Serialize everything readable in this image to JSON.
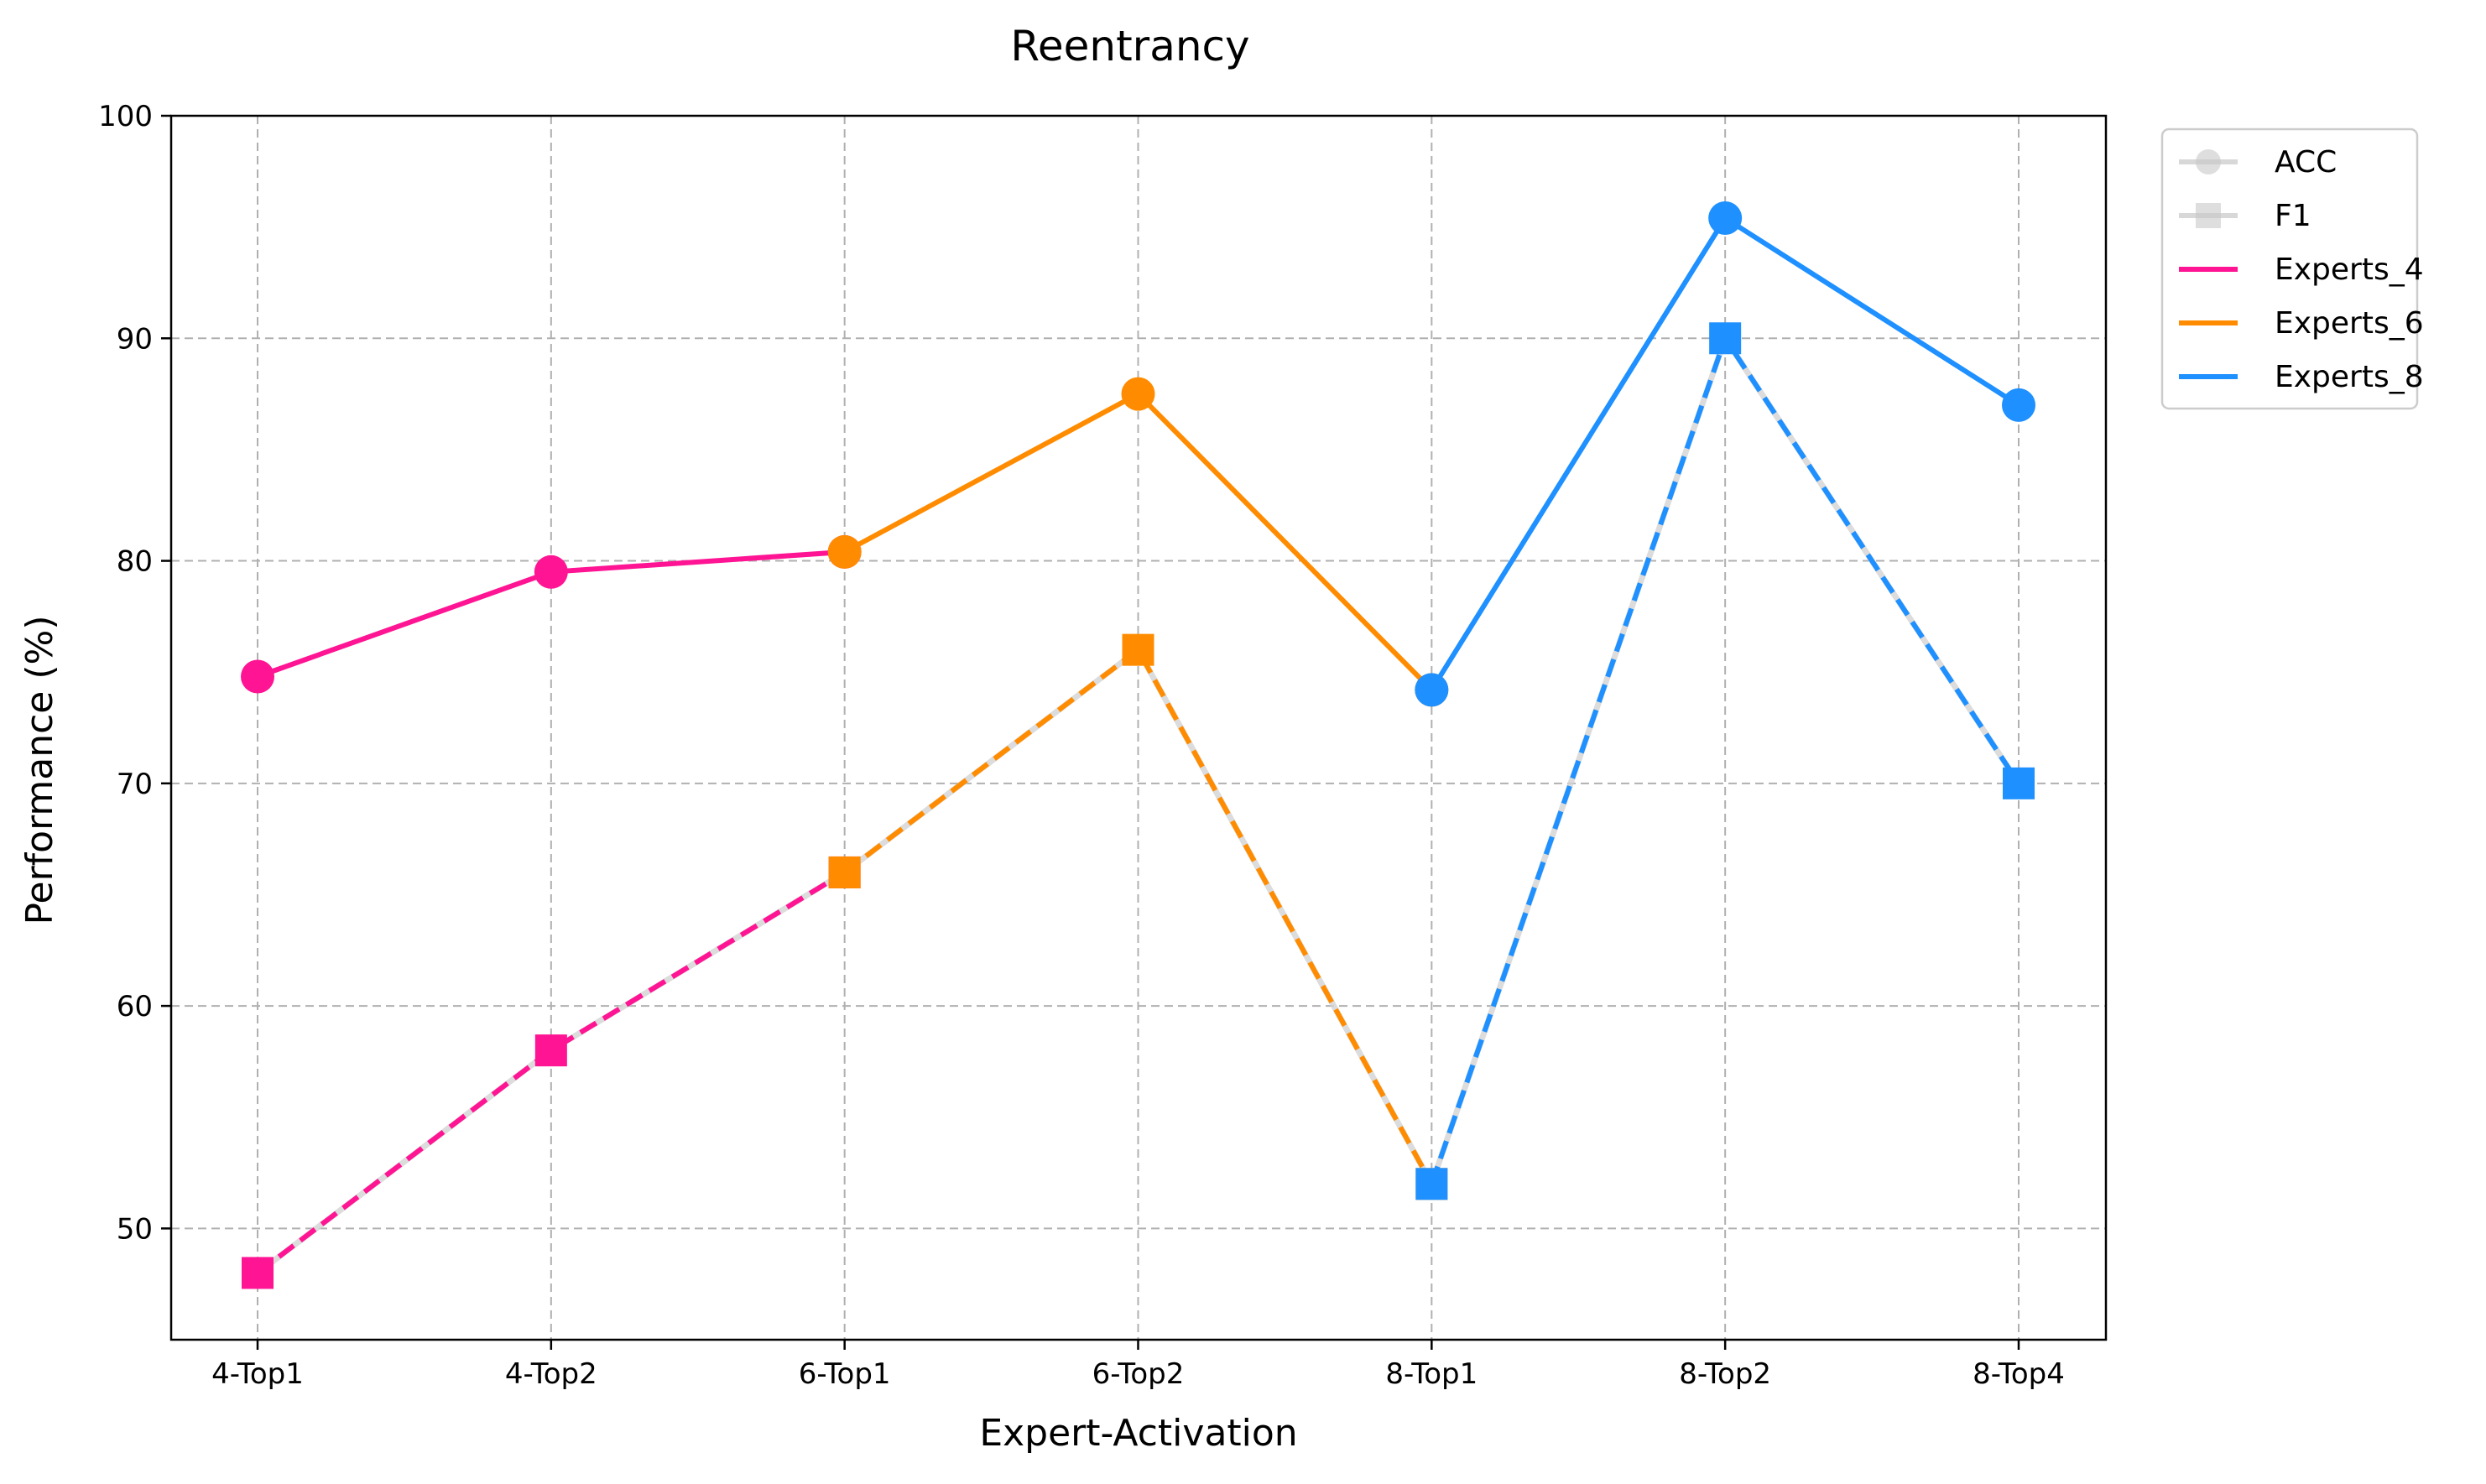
{
  "chart_data": {
    "type": "line",
    "title": "Reentrancy",
    "xlabel": "Expert-Activation",
    "ylabel": "Performance (%)",
    "categories": [
      "4-Top1",
      "4-Top2",
      "6-Top1",
      "6-Top2",
      "8-Top1",
      "8-Top2",
      "8-Top4"
    ],
    "ylim": [
      45,
      100
    ],
    "yticks": [
      50,
      60,
      70,
      80,
      90,
      100
    ],
    "grid": true,
    "legend_position": "outside right top",
    "metric_legend": [
      {
        "label": "ACC",
        "marker": "circle",
        "linestyle": "solid"
      },
      {
        "label": "F1",
        "marker": "square",
        "linestyle": "dashed"
      }
    ],
    "series": [
      {
        "name": "Experts_4",
        "color": "#ff1493",
        "start": 0,
        "acc": [
          74.8,
          79.5,
          80.4
        ],
        "f1": [
          48,
          58,
          66
        ]
      },
      {
        "name": "Experts_6",
        "color": "#ff8c00",
        "start": 2,
        "acc": [
          80.4,
          87.5,
          74.2
        ],
        "f1": [
          66,
          76,
          52
        ]
      },
      {
        "name": "Experts_8",
        "color": "#1e90ff",
        "start": 4,
        "acc": [
          74.2,
          95.4,
          87.0
        ],
        "f1": [
          52,
          90,
          70
        ]
      }
    ]
  }
}
